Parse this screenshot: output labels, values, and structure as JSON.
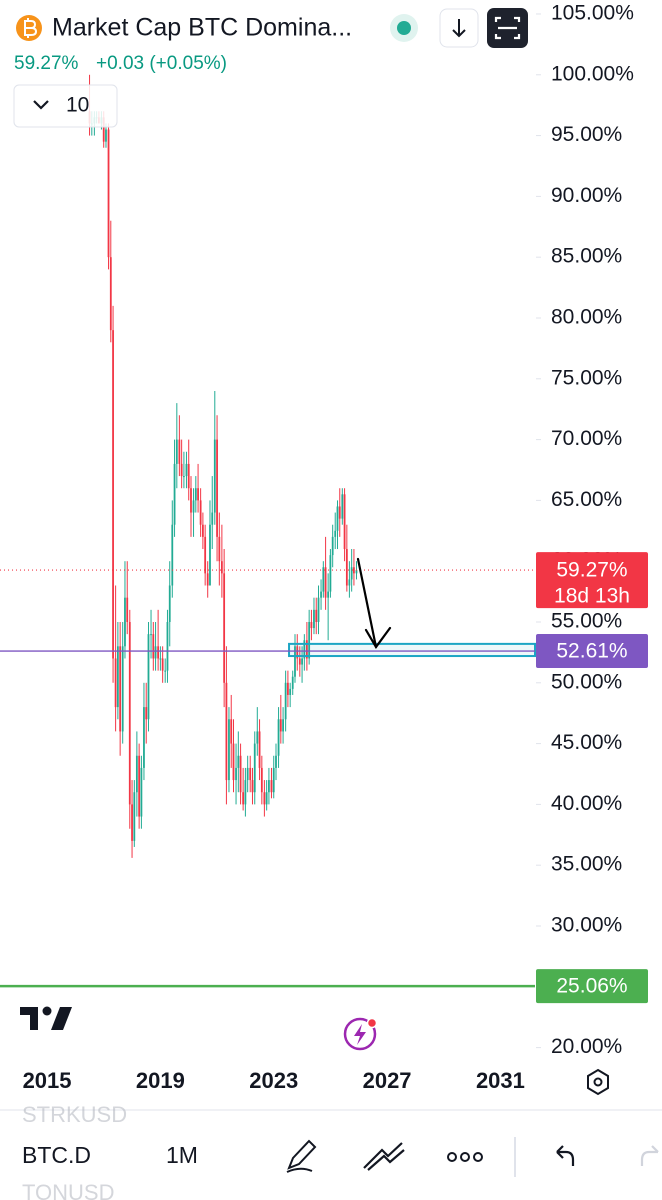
{
  "header": {
    "title": "Market Cap BTC Domina...",
    "price": "59.27%",
    "change": "+0.03 (+0.05%)",
    "indicators_count": "10"
  },
  "toolbar": {
    "symbol": "BTC.D",
    "interval": "1M",
    "watchlist_above": "STRKUSD",
    "watchlist_below": "TONUSD"
  },
  "chart_data": {
    "type": "candlestick",
    "x": [
      2016.5,
      2016.58,
      2016.67,
      2016.75,
      2016.83,
      2016.92,
      2017,
      2017.08,
      2017.17,
      2017.25,
      2017.33,
      2017.42,
      2017.5,
      2017.58,
      2017.67,
      2017.75,
      2017.83,
      2017.92,
      2018,
      2018.08,
      2018.17,
      2018.25,
      2018.33,
      2018.42,
      2018.5,
      2018.58,
      2018.67,
      2018.75,
      2018.83,
      2018.92,
      2019,
      2019.08,
      2019.17,
      2019.25,
      2019.33,
      2019.42,
      2019.5,
      2019.58,
      2019.67,
      2019.75,
      2019.83,
      2019.92,
      2020,
      2020.08,
      2020.17,
      2020.25,
      2020.33,
      2020.42,
      2020.5,
      2020.58,
      2020.67,
      2020.75,
      2020.83,
      2020.92,
      2021,
      2021.08,
      2021.17,
      2021.25,
      2021.33,
      2021.42,
      2021.5,
      2021.58,
      2021.67,
      2021.75,
      2021.83,
      2021.92,
      2022,
      2022.08,
      2022.17,
      2022.25,
      2022.33,
      2022.42,
      2022.5,
      2022.58,
      2022.67,
      2022.75,
      2022.83,
      2022.92,
      2023,
      2023.08,
      2023.17,
      2023.25,
      2023.33,
      2023.42,
      2023.5,
      2023.58,
      2023.67,
      2023.75,
      2023.83,
      2023.92,
      2024,
      2024.08,
      2024.17,
      2024.25,
      2024.33,
      2024.42,
      2024.5,
      2024.58,
      2024.67,
      2024.75,
      2024.83,
      2024.92,
      2025,
      2025.08,
      2025.17,
      2025.25,
      2025.33,
      2025.42,
      2025.5,
      2025.58,
      2025.67,
      2025.75,
      2025.83,
      2025.92
    ],
    "open": [
      97,
      96,
      96,
      96.5,
      96.5,
      96,
      96.5,
      94.5,
      95.5,
      85,
      79,
      52,
      48,
      53,
      46,
      53,
      57,
      55,
      40,
      37,
      41,
      44,
      39,
      43,
      48,
      47,
      54,
      54,
      52,
      53,
      52,
      52,
      51,
      51,
      55,
      58,
      63,
      68,
      70,
      68,
      67,
      67,
      68,
      66,
      64,
      65,
      66,
      65,
      63,
      62,
      59,
      58,
      63,
      64,
      70,
      62,
      60,
      59,
      50,
      42,
      47,
      45,
      42,
      43,
      44,
      41,
      40,
      42,
      43,
      42,
      41,
      45,
      46,
      43,
      41,
      40,
      41,
      42,
      41,
      43,
      44,
      47,
      46,
      47,
      50,
      49,
      49.5,
      50.5,
      53,
      52,
      51.5,
      52,
      53.5,
      52,
      55,
      54.5,
      56,
      55,
      57,
      57.5,
      59.5,
      57,
      57.5,
      60.5,
      62,
      62.5,
      64.5,
      63.5,
      65.5,
      61,
      58,
      58.5,
      59.5,
      59
    ],
    "high": [
      100,
      97,
      97,
      97,
      97,
      97,
      97,
      96,
      96,
      88,
      81,
      58,
      55,
      55,
      55,
      60,
      60,
      56,
      42,
      42,
      46,
      45,
      44,
      50,
      50,
      55,
      56,
      55,
      55,
      56,
      53,
      53,
      52,
      56,
      60,
      65,
      70,
      73,
      72,
      70,
      69,
      69,
      70,
      67,
      66,
      67,
      68,
      66,
      64,
      63,
      60,
      65,
      67,
      74,
      72,
      64,
      63,
      61,
      53,
      48,
      49,
      47,
      45,
      46,
      45,
      43,
      43,
      44,
      44,
      43,
      46,
      48,
      47,
      44,
      42,
      42,
      43,
      43,
      44,
      45,
      48,
      49,
      48,
      51,
      51,
      50,
      51,
      54,
      54,
      53,
      53,
      54,
      55,
      56,
      56,
      57,
      57,
      58,
      58.5,
      60,
      62,
      59,
      61,
      63,
      64,
      65,
      66,
      66,
      66,
      63,
      60,
      61,
      61,
      60
    ],
    "low": [
      95,
      95,
      95,
      96,
      96,
      95.5,
      94,
      94,
      84,
      78,
      50,
      46,
      47,
      44,
      45,
      52,
      54,
      38,
      35.6,
      36.5,
      39,
      38,
      38,
      42,
      45,
      46,
      52,
      51,
      51,
      51,
      51,
      50,
      50,
      50,
      53,
      57,
      62,
      66,
      67,
      66,
      66,
      66,
      65,
      62,
      62,
      64,
      64,
      62,
      61,
      58,
      57,
      58,
      61,
      63,
      60,
      58,
      57,
      48,
      40,
      41,
      43,
      41,
      40,
      41,
      40,
      39.5,
      39,
      41,
      41,
      40,
      40,
      44,
      42,
      40,
      39,
      39.5,
      40,
      40.5,
      40.5,
      42,
      43,
      45,
      45,
      46,
      48,
      48,
      49,
      50,
      51,
      50.5,
      50,
      51,
      51,
      51.5,
      53.5,
      54,
      54,
      54,
      56,
      57,
      56,
      53.5,
      57,
      59.5,
      61,
      61,
      62,
      63,
      60,
      57.5,
      57,
      57.5,
      58,
      58.5
    ],
    "close": [
      96,
      96,
      96.5,
      96.5,
      96,
      96.5,
      94.5,
      95.5,
      85,
      79,
      52,
      48,
      53,
      46,
      53,
      57,
      55,
      40,
      37,
      41,
      44,
      39,
      43,
      48,
      47,
      54,
      54,
      52,
      53,
      52,
      52,
      51,
      51,
      55,
      58,
      63,
      68,
      70,
      68,
      67,
      67,
      68,
      66,
      64,
      65,
      66,
      65,
      63,
      62,
      59,
      58,
      63,
      64,
      70,
      62,
      60,
      59,
      50,
      42,
      47,
      45,
      42,
      43,
      44,
      41,
      40,
      42,
      43,
      42,
      41,
      45,
      46,
      43,
      41,
      40,
      41,
      42,
      41,
      43,
      44,
      47,
      46,
      47,
      50,
      49,
      49.5,
      50.5,
      53,
      52,
      51.5,
      52,
      53.5,
      52,
      55,
      54.5,
      56,
      55,
      57,
      57.5,
      59.5,
      57,
      57.5,
      60.5,
      62,
      62.5,
      64.5,
      63.5,
      65.5,
      61,
      58,
      58.5,
      59.5,
      59,
      59.27
    ],
    "up_color": "#22ab94",
    "down_color": "#f23645",
    "xlim": [
      2013.34,
      2032.22
    ],
    "ylim": [
      18.98,
      106.15
    ],
    "xticks": [
      2015,
      2019,
      2023,
      2027,
      2031
    ],
    "yticks": [
      {
        "value": 20,
        "label": "20.00%"
      },
      {
        "value": 25,
        "label": "25.00%"
      },
      {
        "value": 30,
        "label": "30.00%"
      },
      {
        "value": 35,
        "label": "35.00%"
      },
      {
        "value": 40,
        "label": "40.00%"
      },
      {
        "value": 45,
        "label": "45.00%"
      },
      {
        "value": 50,
        "label": "50.00%"
      },
      {
        "value": 55,
        "label": "55.00%"
      },
      {
        "value": 60,
        "label": "60.00%"
      },
      {
        "value": 65,
        "label": "65.00%"
      },
      {
        "value": 70,
        "label": "70.00%"
      },
      {
        "value": 75,
        "label": "75.00%"
      },
      {
        "value": 80,
        "label": "80.00%"
      },
      {
        "value": 85,
        "label": "85.00%"
      },
      {
        "value": 90,
        "label": "90.00%"
      },
      {
        "value": 95,
        "label": "95.00%"
      },
      {
        "value": 100,
        "label": "100.00%"
      },
      {
        "value": 105,
        "label": "105.00%"
      }
    ],
    "grid": false,
    "last_price": {
      "value": 59.27,
      "label": "59.27%",
      "countdown": "18d 13h",
      "color": "#f23645"
    },
    "hlines": [
      {
        "value": 52.61,
        "label": "52.61%",
        "color": "#7e57c2"
      },
      {
        "value": 25.06,
        "label": "25.06%",
        "color": "#4caf50"
      }
    ],
    "zone": {
      "top": 53.2,
      "bottom": 52.2,
      "x_start": 2023.54,
      "color": "#1ca5c4"
    }
  }
}
